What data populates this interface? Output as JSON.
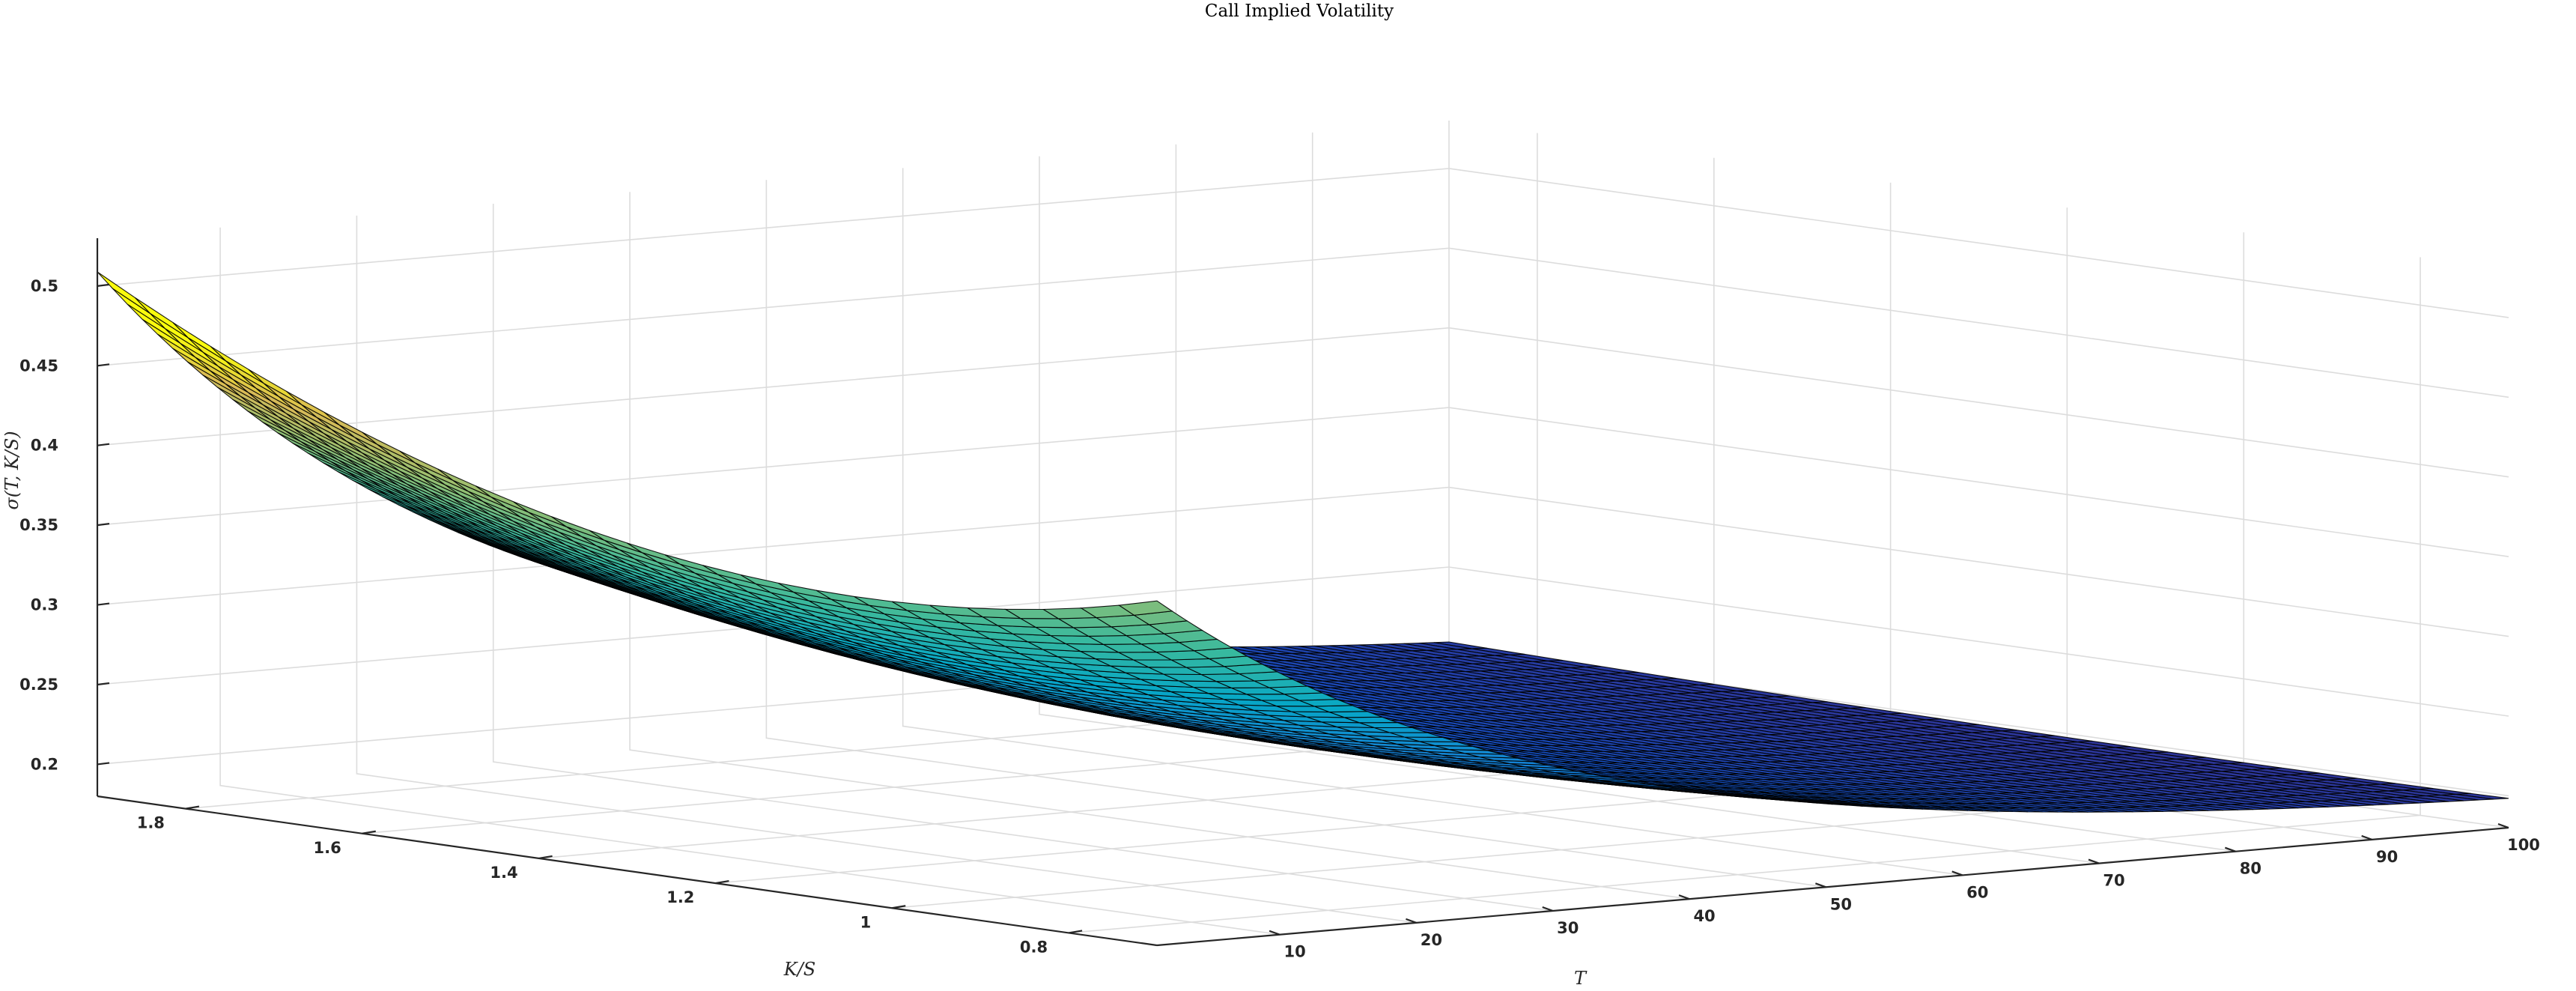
{
  "chart_data": {
    "type": "surface",
    "title": "Call Implied Volatility",
    "xlabel": "T",
    "ylabel": "K/S",
    "zlabel": "σ(T, K/S)",
    "x_range": [
      1,
      100
    ],
    "y_range": [
      0.7,
      1.9
    ],
    "zlim": [
      0.18,
      0.53
    ],
    "x_ticks": [
      10,
      20,
      30,
      40,
      50,
      60,
      70,
      80,
      90,
      100
    ],
    "y_ticks": [
      0.8,
      1,
      1.2,
      1.4,
      1.6,
      1.8
    ],
    "z_ticks": [
      0.2,
      0.25,
      0.3,
      0.35,
      0.4,
      0.45,
      0.5
    ],
    "x_tick_labels": [
      "10",
      "20",
      "30",
      "40",
      "50",
      "60",
      "70",
      "80",
      "90",
      "100"
    ],
    "y_tick_labels": [
      "0.8",
      "1",
      "1.2",
      "1.4",
      "1.6",
      "1.8"
    ],
    "z_tick_labels": [
      "0.2",
      "0.25",
      "0.3",
      "0.35",
      "0.4",
      "0.45",
      "0.5"
    ],
    "surface_corners": [
      {
        "T": 1,
        "K/S": 1.9,
        "sigma": 0.49
      },
      {
        "T": 1,
        "K/S": 0.7,
        "sigma": 0.44
      },
      {
        "T": 100,
        "K/S": 1.9,
        "sigma": 0.19
      },
      {
        "T": 100,
        "K/S": 0.7,
        "sigma": 0.19
      }
    ],
    "colormap": "parula",
    "edge_color": "#000000",
    "grid": true
  }
}
